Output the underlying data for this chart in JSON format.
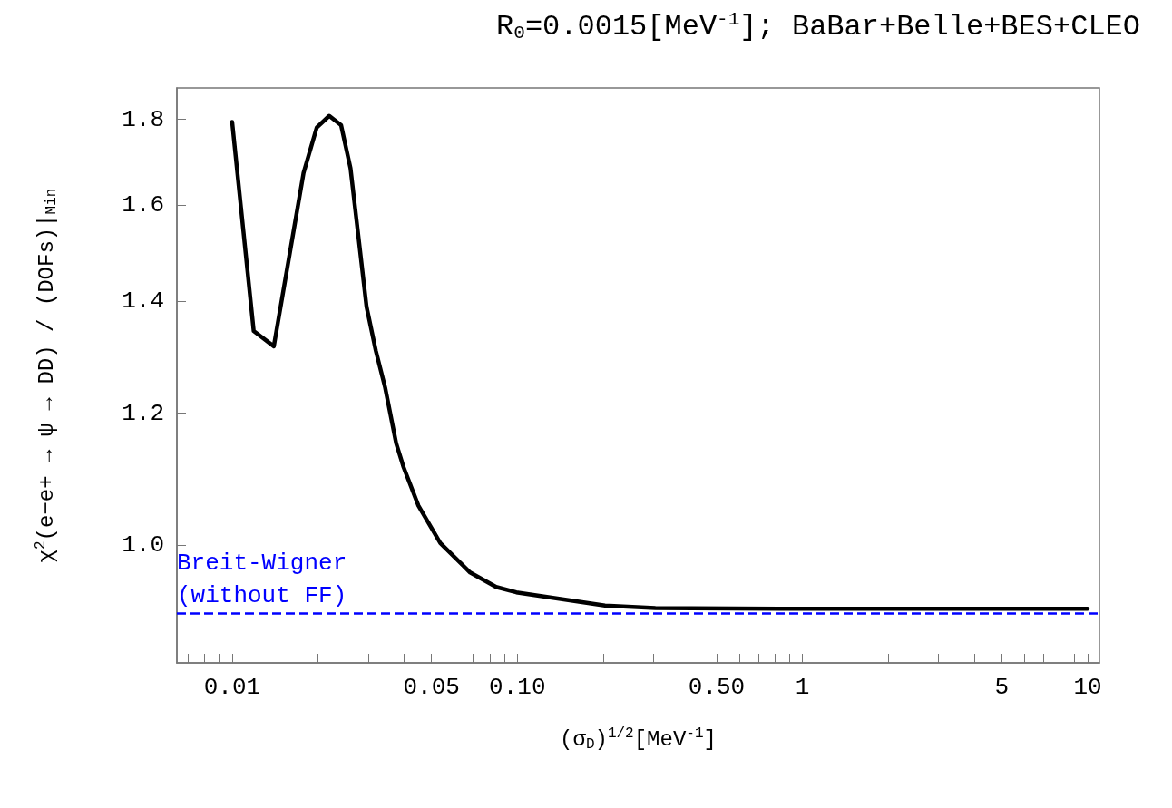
{
  "chart_data": {
    "type": "line",
    "title": "R$_{0}$=0.0015[MeV$^{-1}$]; BaBar+Belle+BES+CLEO",
    "xlabel": "(σ$_{D}$)$^{1/2}$[MeV$^{-1}$]",
    "ylabel": "χ$^{2}$(e−e+ → ψ → DD) / (DOFs)|$_{Min}$",
    "x": [
      0.01,
      0.0119,
      0.014,
      0.0178,
      0.0198,
      0.0219,
      0.0241,
      0.026,
      0.0296,
      0.0319,
      0.0344,
      0.0376,
      0.0399,
      0.045,
      0.0537,
      0.0683,
      0.0843,
      0.0992,
      0.203,
      0.305,
      0.83,
      10
    ],
    "series": [
      {
        "color": "#000000",
        "values": [
          1.794,
          1.344,
          1.316,
          1.672,
          1.78,
          1.809,
          1.786,
          1.683,
          1.39,
          1.308,
          1.243,
          1.151,
          1.114,
          1.056,
          1.003,
          0.963,
          0.944,
          0.937,
          0.92,
          0.917,
          0.916,
          0.916
        ]
      }
    ],
    "log": "xy",
    "xlim": [
      0.0064,
      11
    ],
    "ylim": [
      0.85,
      1.88
    ],
    "xticks": [
      {
        "value": 0.007,
        "label": null
      },
      {
        "value": 0.008,
        "label": null
      },
      {
        "value": 0.009,
        "label": null
      },
      0.01,
      {
        "value": 0.02,
        "label": null
      },
      {
        "value": 0.03,
        "label": null
      },
      {
        "value": 0.04,
        "label": null
      },
      0.05,
      {
        "value": 0.06,
        "label": null
      },
      {
        "value": 0.07,
        "label": null
      },
      {
        "value": 0.08,
        "label": null
      },
      {
        "value": 0.09,
        "label": null
      },
      {
        "value": 0.1,
        "label": "0.10"
      },
      {
        "value": 0.2,
        "label": null
      },
      {
        "value": 0.3,
        "label": null
      },
      {
        "value": 0.4,
        "label": null
      },
      {
        "value": 0.5,
        "label": "0.50"
      },
      {
        "value": 0.6,
        "label": null
      },
      {
        "value": 0.7,
        "label": null
      },
      {
        "value": 0.8,
        "label": null
      },
      {
        "value": 0.9,
        "label": null
      },
      1,
      {
        "value": 2,
        "label": null
      },
      {
        "value": 3,
        "label": null
      },
      {
        "value": 4,
        "label": null
      },
      5,
      {
        "value": 6,
        "label": null
      },
      {
        "value": 7,
        "label": null
      },
      {
        "value": 8,
        "label": null
      },
      {
        "value": 9,
        "label": null
      },
      10
    ],
    "yticks": [
      {
        "value": 1,
        "label": "1.0"
      },
      1.2,
      1.4,
      1.6,
      1.8
    ],
    "ref_lines": [
      {
        "axis": "y",
        "value": 0.908,
        "label": "Breit-Wigner\n(without FF)",
        "color": "#0000ff",
        "line_style": "dashed"
      }
    ],
    "marker": "none",
    "grid": false
  }
}
